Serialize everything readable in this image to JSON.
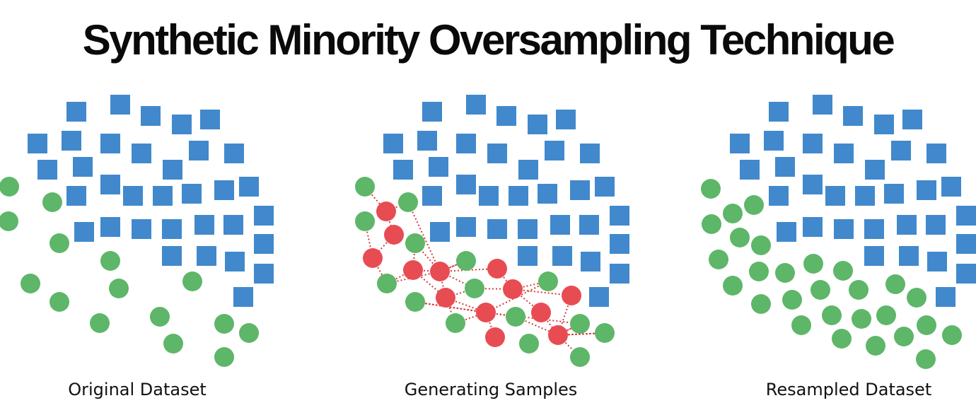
{
  "title": "Synthetic Minority Oversampling Technique",
  "colors": {
    "majority": "#4189CC",
    "minority": "#5EB669",
    "synthetic": "#E84C53",
    "link": "#D93A3A"
  },
  "shapes": {
    "majority": "square",
    "minority": "circle",
    "synthetic": "circle"
  },
  "panels": [
    {
      "label": "Original Dataset"
    },
    {
      "label": "Generating Samples"
    },
    {
      "label": "Resampled Dataset"
    }
  ]
}
